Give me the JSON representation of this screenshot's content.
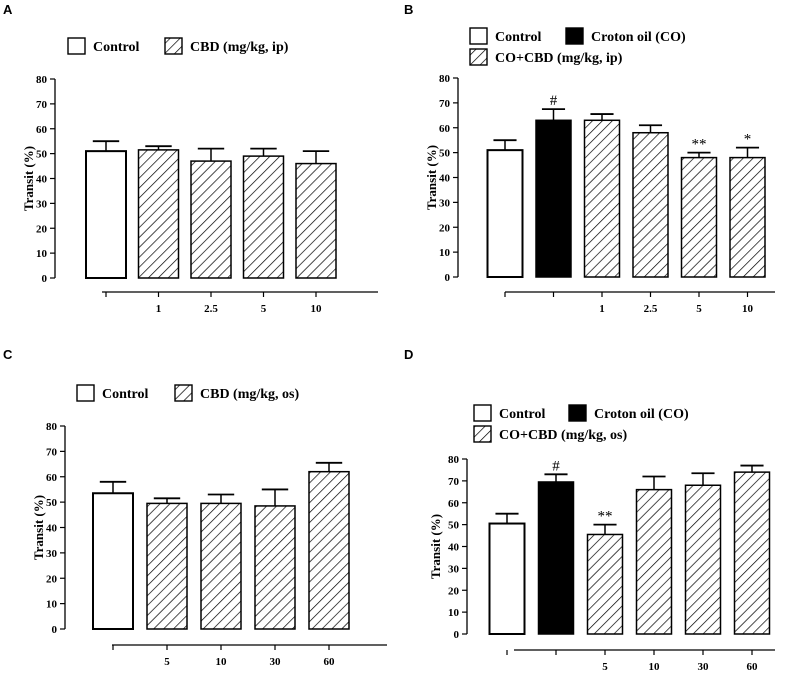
{
  "chart_data": [
    {
      "panel": "A",
      "type": "bar",
      "legend": [
        {
          "label": "Control",
          "style": "open"
        },
        {
          "label": "CBD (mg/kg, ip)",
          "style": "hatched"
        }
      ],
      "categories": [
        "",
        "1",
        "2.5",
        "5",
        "10"
      ],
      "styles": [
        "open",
        "hatched",
        "hatched",
        "hatched",
        "hatched"
      ],
      "values": [
        51,
        51.5,
        47,
        49,
        46
      ],
      "errors": [
        4,
        1.5,
        5,
        3,
        5
      ],
      "annotations": [
        "",
        "",
        "",
        "",
        ""
      ],
      "ylabel": "Transit (%)",
      "ylim": [
        0,
        80
      ],
      "yticks": [
        0,
        10,
        20,
        30,
        40,
        50,
        60,
        70,
        80
      ]
    },
    {
      "panel": "B",
      "type": "bar",
      "legend": [
        {
          "label": "Control",
          "style": "open"
        },
        {
          "label": "Croton oil (CO)",
          "style": "solid"
        },
        {
          "label": "CO+CBD (mg/kg, ip)",
          "style": "hatched"
        }
      ],
      "categories": [
        "",
        "",
        "1",
        "2.5",
        "5",
        "10"
      ],
      "styles": [
        "open",
        "solid",
        "hatched",
        "hatched",
        "hatched",
        "hatched"
      ],
      "values": [
        51,
        63,
        63,
        58,
        48,
        48
      ],
      "errors": [
        4,
        4.5,
        2.5,
        3,
        2,
        4
      ],
      "annotations": [
        "",
        "#",
        "",
        "",
        "**",
        "*"
      ],
      "ylabel": "Transit (%)",
      "ylim": [
        0,
        80
      ],
      "yticks": [
        0,
        10,
        20,
        30,
        40,
        50,
        60,
        70,
        80
      ]
    },
    {
      "panel": "C",
      "type": "bar",
      "legend": [
        {
          "label": "Control",
          "style": "open"
        },
        {
          "label": "CBD (mg/kg, os)",
          "style": "hatched"
        }
      ],
      "categories": [
        "",
        "5",
        "10",
        "30",
        "60"
      ],
      "styles": [
        "open",
        "hatched",
        "hatched",
        "hatched",
        "hatched"
      ],
      "values": [
        53.5,
        49.5,
        49.5,
        48.5,
        62
      ],
      "errors": [
        4.5,
        2,
        3.5,
        6.5,
        3.5
      ],
      "annotations": [
        "",
        "",
        "",
        "",
        ""
      ],
      "ylabel": "Transit (%)",
      "ylim": [
        0,
        80
      ],
      "yticks": [
        0,
        10,
        20,
        30,
        40,
        50,
        60,
        70,
        80
      ]
    },
    {
      "panel": "D",
      "type": "bar",
      "legend": [
        {
          "label": "Control",
          "style": "open"
        },
        {
          "label": "Croton oil (CO)",
          "style": "solid"
        },
        {
          "label": "CO+CBD (mg/kg, os)",
          "style": "hatched"
        }
      ],
      "categories": [
        "",
        "",
        "5",
        "10",
        "30",
        "60"
      ],
      "styles": [
        "open",
        "solid",
        "hatched",
        "hatched",
        "hatched",
        "hatched"
      ],
      "values": [
        50.5,
        69.5,
        45.5,
        66,
        68,
        74
      ],
      "errors": [
        4.5,
        3.5,
        4.5,
        6,
        5.5,
        3
      ],
      "annotations": [
        "",
        "#",
        "**",
        "",
        "",
        ""
      ],
      "ylabel": "Transit (%)",
      "ylim": [
        0,
        80
      ],
      "yticks": [
        0,
        10,
        20,
        30,
        40,
        50,
        60,
        70,
        80
      ]
    }
  ]
}
